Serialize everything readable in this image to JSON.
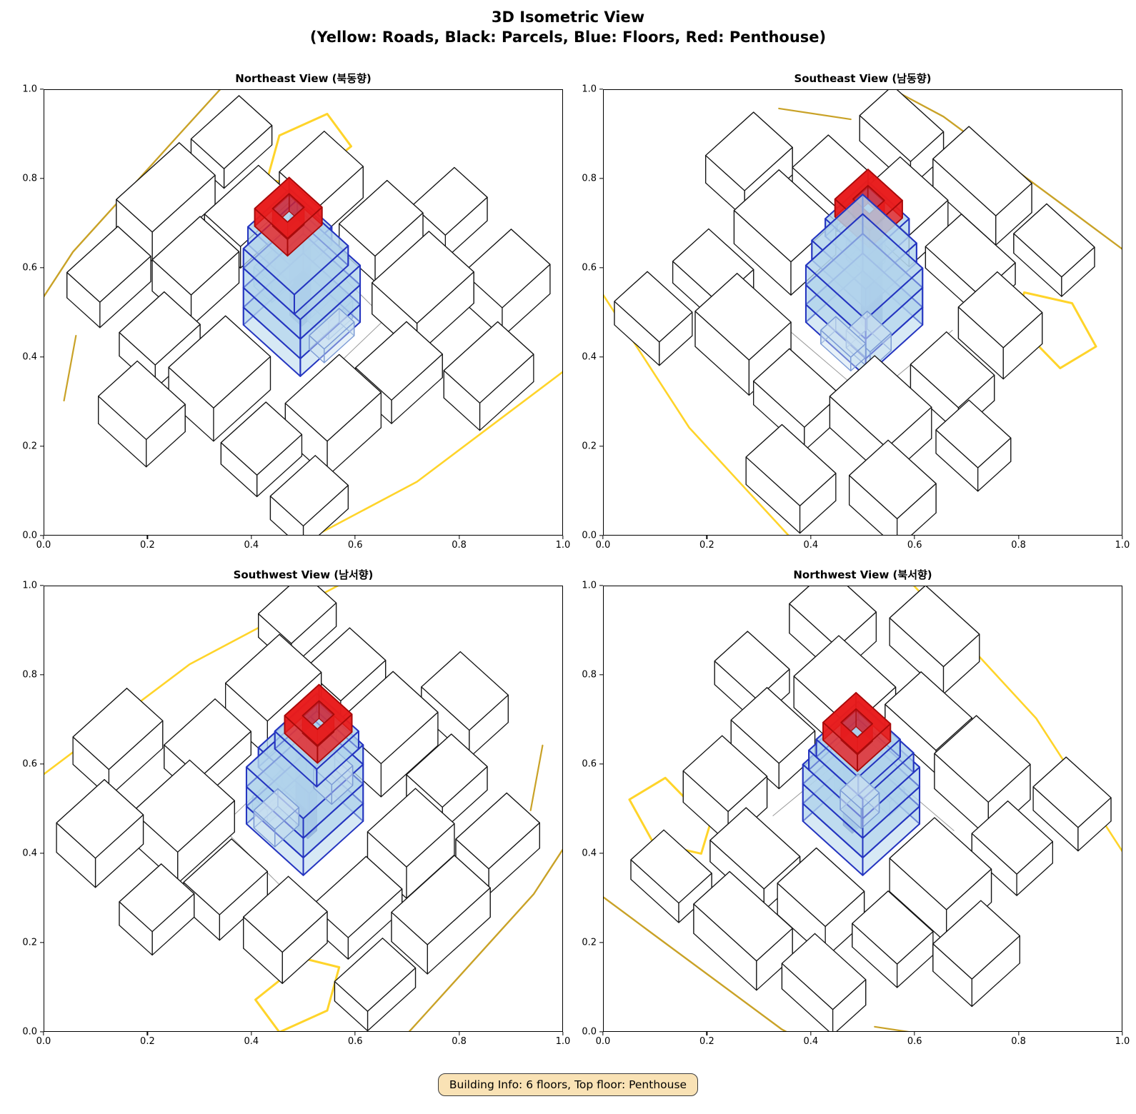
{
  "header": {
    "title_line1": "3D Isometric View",
    "title_line2": "(Yellow: Roads, Black: Parcels, Blue: Floors, Red: Penthouse)"
  },
  "footer": {
    "building_info": "Building Info: 6 floors, Top floor: Penthouse"
  },
  "axes": {
    "ticks": [
      "0.0",
      "0.2",
      "0.4",
      "0.6",
      "0.8",
      "1.0"
    ],
    "range": [
      0.0,
      1.0
    ]
  },
  "legend": {
    "roads_color": "#FFD42A",
    "roads_secondary_color": "#C9A227",
    "parcels_color": "#111111",
    "floors_fill": "#B0D3EB",
    "floors_edge": "#2535C0",
    "penthouse_fill": "#E81C1C",
    "penthouse_edge": "#A80A0A",
    "badge_bg": "#F9E2B5"
  },
  "chart_data": {
    "type": "3d-isometric-multiview",
    "title": "3D Isometric View",
    "subtitle": "(Yellow: Roads, Black: Parcels, Blue: Floors, Red: Penthouse)",
    "axis_range": [
      0.0,
      1.0
    ],
    "axis_ticks": [
      0.0,
      0.2,
      0.4,
      0.6,
      0.8,
      1.0
    ],
    "building": {
      "floors": 6,
      "top_floor": "Penthouse"
    },
    "views": [
      {
        "key": "northeast",
        "title": "Northeast View (북동향)",
        "rotation_deg": 0
      },
      {
        "key": "southeast",
        "title": "Southeast View (남동향)",
        "rotation_deg": 270
      },
      {
        "key": "southwest",
        "title": "Southwest View (남서향)",
        "rotation_deg": 180
      },
      {
        "key": "northwest",
        "title": "Northwest View (북서향)",
        "rotation_deg": 90
      }
    ],
    "style": {
      "parcel_fill": "#ffffff",
      "parcel_edge": "#151515",
      "floor_fill": "#B0D3EB",
      "floor_edge": "#2535C0",
      "floor_opacity": 0.5,
      "annex_fill": "#C9E0F0",
      "annex_edge": "#7C9BD6",
      "core_fill": "#1A23A0",
      "core_edge": "#111A78",
      "penthouse_fill": "#E81C1C",
      "penthouse_edge": "#A80A0A",
      "road_dark": "#C9A227",
      "road_bright": "#FFD42A",
      "ground_line": "#9a9a9a"
    },
    "scene": {
      "parcels": [
        [
          -2.7,
          0.1,
          1.9,
          1.5,
          0.85
        ],
        [
          -2.9,
          1.9,
          1.5,
          1.2,
          0.6
        ],
        [
          -1.1,
          2.5,
          1.6,
          1.3,
          0.8
        ],
        [
          0.9,
          2.7,
          1.8,
          1.2,
          0.55
        ],
        [
          2.6,
          2.0,
          1.5,
          1.3,
          0.8
        ],
        [
          2.8,
          0.2,
          1.6,
          1.2,
          0.65
        ],
        [
          2.3,
          -1.7,
          1.9,
          1.5,
          0.8
        ],
        [
          0.5,
          -2.7,
          1.7,
          1.2,
          0.6
        ],
        [
          -1.5,
          -2.5,
          1.8,
          1.4,
          0.9
        ],
        [
          -3.2,
          -1.8,
          1.5,
          1.2,
          0.55
        ],
        [
          -0.3,
          4.3,
          2.1,
          1.2,
          0.75
        ],
        [
          2.0,
          4.4,
          1.6,
          1.1,
          0.5
        ],
        [
          -2.6,
          3.9,
          1.7,
          1.1,
          0.65
        ],
        [
          4.3,
          -0.6,
          1.4,
          1.1,
          0.6
        ],
        [
          3.9,
          -2.9,
          1.6,
          1.3,
          0.75
        ],
        [
          -4.6,
          0.8,
          1.3,
          1.6,
          0.7
        ],
        [
          -3.4,
          -3.6,
          1.5,
          1.1,
          0.6
        ],
        [
          1.9,
          -4.3,
          1.8,
          1.2,
          0.7
        ]
      ],
      "roads": [
        {
          "color_key": "road_dark",
          "width": 2.4,
          "points": [
            [
              -5.6,
              4.4
            ],
            [
              -2.5,
              5.2
            ],
            [
              1.5,
              5.6
            ],
            [
              5.6,
              6.0
            ]
          ]
        },
        {
          "color_key": "road_bright",
          "width": 3.0,
          "points": [
            [
              2.1,
              3.3
            ],
            [
              3.1,
              3.9
            ],
            [
              4.3,
              3.5
            ],
            [
              4.1,
              2.5
            ],
            [
              2.5,
              2.6
            ],
            [
              2.1,
              3.3
            ]
          ]
        },
        {
          "color_key": "road_bright",
          "width": 2.6,
          "points": [
            [
              -5.6,
              -3.6
            ],
            [
              -1.0,
              -4.8
            ],
            [
              5.6,
              -5.4
            ]
          ]
        },
        {
          "color_key": "road_dark",
          "width": 2.2,
          "points": [
            [
              -5.4,
              2.6
            ],
            [
              -4.0,
              3.6
            ]
          ]
        }
      ],
      "ground_lines": [
        {
          "points": [
            [
              -1.7,
              -1.35
            ],
            [
              1.8,
              -1.25
            ]
          ]
        },
        {
          "points": [
            [
              1.45,
              -1.9
            ],
            [
              1.6,
              1.4
            ]
          ]
        }
      ],
      "floors": [
        [
          0.0,
          0.05,
          2.0,
          1.9,
          0.0,
          0.45
        ],
        [
          0.0,
          0.05,
          2.0,
          1.9,
          0.45,
          0.95
        ],
        [
          0.0,
          0.05,
          2.0,
          1.9,
          0.95,
          1.45
        ],
        [
          -0.1,
          0.15,
          1.8,
          1.7,
          1.45,
          1.95
        ],
        [
          -0.15,
          0.3,
          1.4,
          1.4,
          1.95,
          2.4
        ]
      ],
      "annexes": [
        [
          0.15,
          -0.8,
          1.0,
          0.5,
          0.0,
          0.35
        ],
        [
          0.55,
          -0.35,
          0.8,
          0.7,
          0.0,
          0.45
        ],
        [
          -0.45,
          0.55,
          0.7,
          0.6,
          0.95,
          1.45
        ]
      ],
      "core": {
        "x": 0.1,
        "y": 0.2,
        "w": 0.3,
        "d": 0.4,
        "z0": 0.0,
        "z1": 2.55,
        "depth_bias": 0.9
      },
      "penthouse": {
        "x": -0.15,
        "y": 0.35,
        "w": 1.15,
        "d": 1.1,
        "hw": 0.55,
        "hd": 0.5,
        "z0": 2.4,
        "z1": 2.85
      }
    }
  }
}
